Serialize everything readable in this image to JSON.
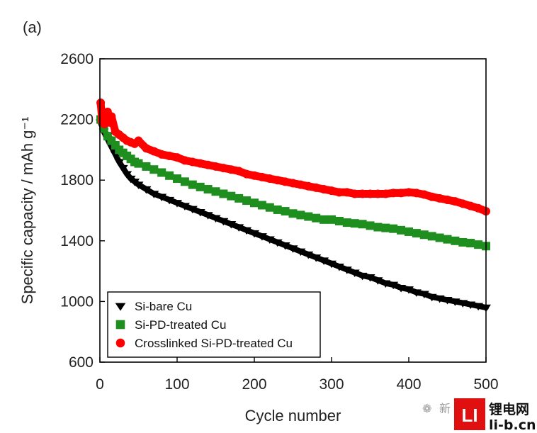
{
  "panel_label": "(a)",
  "watermark": {
    "account": "新",
    "brand_cn": "锂电网",
    "brand_url": "li-b.cn",
    "logo_mark": "LI"
  },
  "colors": {
    "series0": "#000000",
    "series1": "#1e8f1e",
    "series2": "#ff0000",
    "axis": "#000000"
  },
  "chart_data": {
    "type": "scatter",
    "title": "",
    "xlabel": "Cycle number",
    "ylabel": "Specific capacity / mAh g⁻¹",
    "xlim": [
      0,
      500
    ],
    "ylim": [
      600,
      2600
    ],
    "xticks": [
      0,
      100,
      200,
      300,
      400,
      500
    ],
    "yticks": [
      600,
      1000,
      1400,
      1800,
      2200,
      2600
    ],
    "xtick_labels": [
      "0",
      "100",
      "200",
      "300",
      "400",
      "500"
    ],
    "ytick_labels": [
      "600",
      "1000",
      "1400",
      "1800",
      "2200",
      "2600"
    ],
    "legend_position": "bottom-left",
    "series": [
      {
        "name": "Si-bare Cu",
        "marker": "triangle-down",
        "color": "#000000",
        "x": [
          1,
          5,
          10,
          15,
          20,
          25,
          30,
          35,
          40,
          45,
          50,
          60,
          70,
          80,
          90,
          100,
          110,
          120,
          130,
          140,
          150,
          160,
          170,
          180,
          190,
          200,
          210,
          220,
          230,
          240,
          250,
          260,
          270,
          280,
          290,
          300,
          310,
          320,
          330,
          340,
          350,
          360,
          370,
          380,
          390,
          400,
          410,
          420,
          430,
          440,
          450,
          460,
          470,
          480,
          490,
          500
        ],
        "y": [
          2180,
          2120,
          2070,
          2020,
          1970,
          1920,
          1880,
          1840,
          1810,
          1790,
          1770,
          1740,
          1710,
          1690,
          1670,
          1650,
          1630,
          1610,
          1590,
          1570,
          1550,
          1530,
          1510,
          1490,
          1470,
          1450,
          1430,
          1410,
          1390,
          1370,
          1350,
          1330,
          1310,
          1290,
          1270,
          1250,
          1230,
          1210,
          1190,
          1170,
          1160,
          1140,
          1120,
          1110,
          1090,
          1080,
          1060,
          1050,
          1030,
          1020,
          1010,
          1000,
          990,
          980,
          970,
          960
        ]
      },
      {
        "name": "Si-PD-treated Cu",
        "marker": "square",
        "color": "#1e8f1e",
        "x": [
          1,
          5,
          10,
          15,
          20,
          25,
          30,
          35,
          40,
          45,
          50,
          60,
          70,
          80,
          90,
          100,
          110,
          120,
          130,
          140,
          150,
          160,
          170,
          180,
          190,
          200,
          210,
          220,
          230,
          240,
          250,
          260,
          270,
          280,
          290,
          300,
          310,
          320,
          330,
          340,
          350,
          360,
          370,
          380,
          390,
          400,
          410,
          420,
          430,
          440,
          450,
          460,
          470,
          480,
          490,
          500
        ],
        "y": [
          2200,
          2140,
          2090,
          2060,
          2030,
          2000,
          1980,
          1960,
          1940,
          1920,
          1910,
          1890,
          1870,
          1850,
          1830,
          1810,
          1790,
          1770,
          1755,
          1740,
          1725,
          1710,
          1695,
          1680,
          1665,
          1650,
          1635,
          1620,
          1605,
          1595,
          1580,
          1570,
          1560,
          1550,
          1540,
          1540,
          1530,
          1520,
          1515,
          1510,
          1500,
          1490,
          1485,
          1480,
          1470,
          1460,
          1450,
          1440,
          1430,
          1420,
          1410,
          1400,
          1390,
          1385,
          1375,
          1365
        ]
      },
      {
        "name": "Crosslinked Si-PD-treated Cu",
        "marker": "circle",
        "color": "#ff0000",
        "x": [
          1,
          3,
          6,
          8,
          10,
          13,
          15,
          20,
          25,
          30,
          35,
          40,
          45,
          50,
          60,
          70,
          80,
          90,
          100,
          110,
          120,
          130,
          140,
          150,
          160,
          170,
          180,
          190,
          200,
          210,
          220,
          230,
          240,
          250,
          260,
          270,
          280,
          290,
          300,
          310,
          320,
          330,
          340,
          350,
          360,
          370,
          380,
          390,
          400,
          410,
          420,
          430,
          440,
          450,
          460,
          470,
          480,
          490,
          500
        ],
        "y": [
          2310,
          2190,
          2170,
          2220,
          2250,
          2180,
          2220,
          2120,
          2100,
          2080,
          2060,
          2050,
          2040,
          2060,
          2010,
          1990,
          1970,
          1960,
          1950,
          1930,
          1920,
          1910,
          1900,
          1890,
          1880,
          1870,
          1860,
          1840,
          1830,
          1820,
          1810,
          1800,
          1790,
          1780,
          1770,
          1760,
          1750,
          1740,
          1730,
          1720,
          1720,
          1710,
          1710,
          1710,
          1710,
          1710,
          1715,
          1715,
          1720,
          1715,
          1705,
          1690,
          1680,
          1670,
          1660,
          1645,
          1630,
          1615,
          1595
        ]
      }
    ]
  }
}
